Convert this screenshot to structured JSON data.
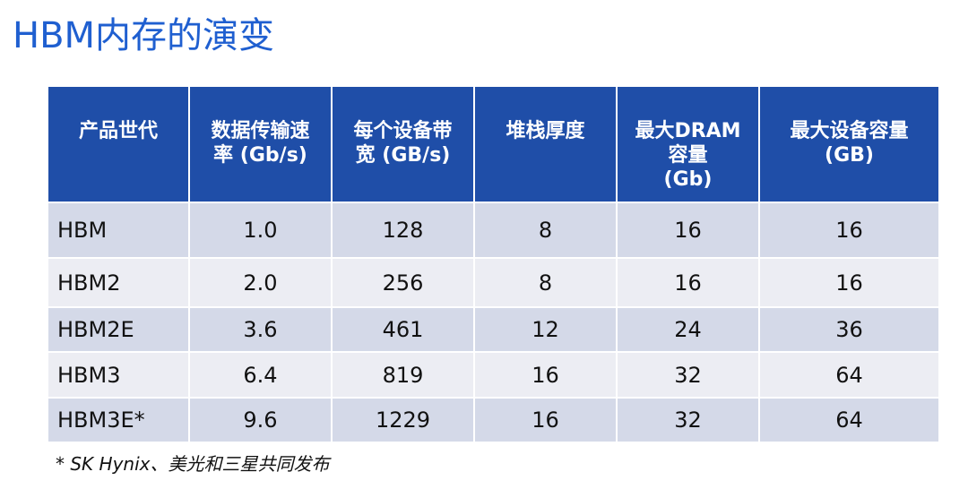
{
  "title": "HBM内存的演变",
  "table": {
    "headers": [
      [
        "产品世代"
      ],
      [
        "数据传输速",
        "率 (Gb/s)"
      ],
      [
        "每个设备带",
        "宽 (GB/s)"
      ],
      [
        "堆栈厚度"
      ],
      [
        "最大DRAM",
        "容量",
        "(Gb)"
      ],
      [
        "最大设备容量",
        "(GB)"
      ]
    ],
    "rows": [
      [
        "HBM",
        "1.0",
        "128",
        "8",
        "16",
        "16"
      ],
      [
        "HBM2",
        "2.0",
        "256",
        "8",
        "16",
        "16"
      ],
      [
        "HBM2E",
        "3.6",
        "461",
        "12",
        "24",
        "36"
      ],
      [
        "HBM3",
        "6.4",
        "819",
        "16",
        "32",
        "64"
      ],
      [
        "HBM3E*",
        "9.6",
        "1229",
        "16",
        "32",
        "64"
      ]
    ]
  },
  "footnote": "* SK Hynix、美光和三星共同发布",
  "colors": {
    "title": "#1f5fd0",
    "header_bg": "#1f4ea8",
    "row_dark": "#d4d9e8",
    "row_light": "#ecedf3"
  }
}
